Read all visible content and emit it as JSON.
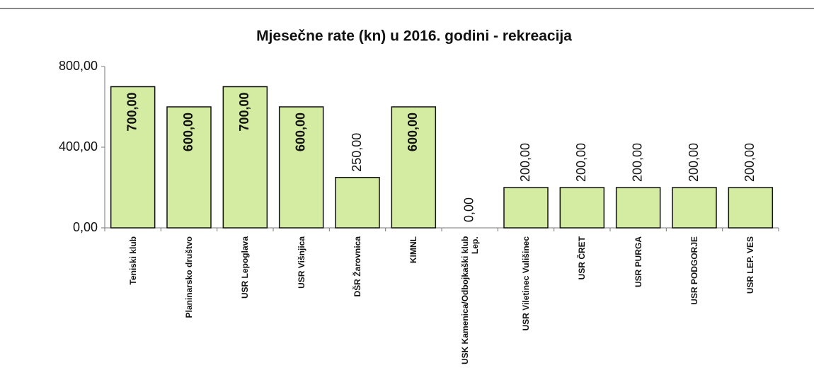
{
  "chart_data": {
    "type": "bar",
    "title": "Mjesečne rate (kn) u 2016. godini - rekreacija",
    "categories": [
      "Teniski klub",
      "Planinarsko društvo",
      "USR Lepoglava",
      "USR Višnjica",
      "DŠR Žarovnica",
      "KIMNL",
      "USK Kamenica/Odbojkaški klub Lep.",
      "USR Viletinec Vulišinec",
      "USR ČRET",
      "USR PURGA",
      "USR PODGORJE",
      "USR LEP. VES"
    ],
    "values": [
      700,
      600,
      700,
      600,
      250,
      600,
      0,
      200,
      200,
      200,
      200,
      200
    ],
    "value_labels": [
      "700,00",
      "600,00",
      "700,00",
      "600,00",
      "250,00",
      "600,00",
      "0,00",
      "200,00",
      "200,00",
      "200,00",
      "200,00",
      "200,00"
    ],
    "color": "#d4eba2",
    "ylim": [
      0,
      800
    ],
    "yticks": [
      {
        "value": 0,
        "label": "0,00"
      },
      {
        "value": 400,
        "label": "400,00"
      },
      {
        "value": 800,
        "label": "800,00"
      }
    ]
  }
}
